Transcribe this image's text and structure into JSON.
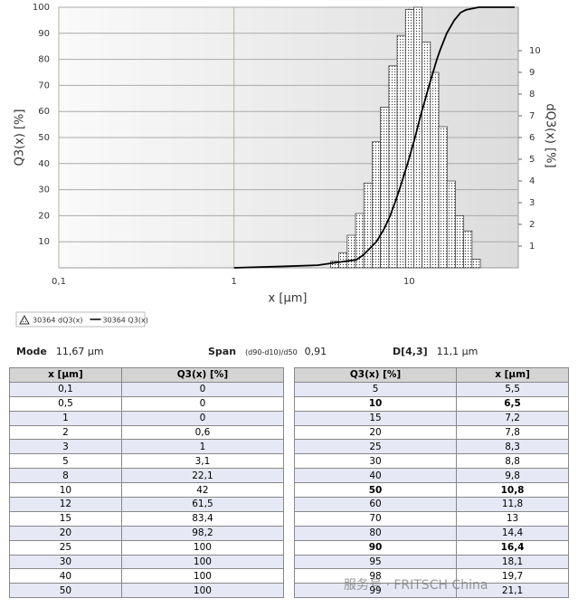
{
  "chart_data": {
    "type": "histogram",
    "xlabel": "x [µm]",
    "ylabel": "Q3(x) [%]",
    "y2label": "dQ3(x) [%]",
    "xscale": "log",
    "grid": true,
    "xlim": [
      0.1,
      42
    ],
    "xticks": [
      {
        "value": 0.1,
        "label": "0,1"
      },
      1,
      10
    ],
    "ylim": [
      0,
      100
    ],
    "yticks": [
      10,
      20,
      30,
      40,
      50,
      60,
      70,
      80,
      90,
      100
    ],
    "y2lim": [
      0,
      12
    ],
    "y2ticks": [
      1,
      2,
      3,
      4,
      5,
      6,
      7,
      8,
      9,
      10
    ],
    "series": [
      {
        "name": "30364 dQ3(x)",
        "type": "histogram",
        "axis": "y2",
        "color": "#333333",
        "bins": [
          3.56,
          3.97,
          4.43,
          4.94,
          5.51,
          6.15,
          6.86,
          7.66,
          8.54,
          9.53,
          10.63,
          11.86,
          13.23,
          14.76,
          16.47,
          18.37,
          20.5,
          22.87,
          25.51
        ],
        "values": [
          0.3,
          0.7,
          1.5,
          2.5,
          3.9,
          5.8,
          7.4,
          9.3,
          10.7,
          11.9,
          12,
          10.4,
          9,
          6.5,
          4,
          2.4,
          1.7,
          0.4
        ]
      },
      {
        "name": "30364 Q3(x)",
        "type": "line",
        "color": "#000000",
        "x": [
          1,
          2,
          3,
          5,
          5.5,
          6.5,
          7.2,
          7.8,
          8,
          8.3,
          8.8,
          9.8,
          10,
          10.8,
          11.8,
          12,
          13,
          14.4,
          15,
          16.4,
          18.1,
          19.7,
          20,
          21.1,
          25,
          40
        ],
        "values": [
          0,
          0.6,
          1,
          3.1,
          5,
          10,
          15,
          20,
          22.1,
          25,
          30,
          40,
          42,
          50,
          60,
          61.5,
          70,
          80,
          83.4,
          90,
          95,
          98,
          98.2,
          99,
          100,
          100
        ]
      }
    ]
  },
  "stats": {
    "mode_label": "Mode",
    "mode_value": "11,67 µm",
    "span_label": "Span",
    "span_note": "(d90-d10)/d50",
    "span_value": "0,91",
    "d43_label": "D[4,3]",
    "d43_value": "11,1 µm"
  },
  "tables": [
    {
      "header": [
        "x [µm]",
        "Q3(x) [%]"
      ],
      "rows": [
        [
          "0,1",
          "0"
        ],
        [
          "0,5",
          "0"
        ],
        [
          "1",
          "0"
        ],
        [
          "2",
          "0,6"
        ],
        [
          "3",
          "1"
        ],
        [
          "5",
          "3,1"
        ],
        [
          "8",
          "22,1"
        ],
        [
          "10",
          "42"
        ],
        [
          "12",
          "61,5"
        ],
        [
          "15",
          "83,4"
        ],
        [
          "20",
          "98,2"
        ],
        [
          "25",
          "100"
        ],
        [
          "30",
          "100"
        ],
        [
          "40",
          "100"
        ],
        [
          "50",
          "100"
        ]
      ]
    },
    {
      "header": [
        "Q3(x) [%]",
        "x [µm]"
      ],
      "rows": [
        [
          "5",
          "5,5"
        ],
        [
          "10",
          "6,5"
        ],
        [
          "15",
          "7,2"
        ],
        [
          "20",
          "7,8"
        ],
        [
          "25",
          "8,3"
        ],
        [
          "30",
          "8,8"
        ],
        [
          "40",
          "9,8"
        ],
        [
          "50",
          "10,8"
        ],
        [
          "60",
          "11,8"
        ],
        [
          "70",
          "13"
        ],
        [
          "80",
          "14,4"
        ],
        [
          "90",
          "16,4"
        ],
        [
          "95",
          "18,1"
        ],
        [
          "98",
          "19,7"
        ],
        [
          "99",
          "21,1"
        ]
      ]
    }
  ],
  "watermark": "服务号 · FRITSCH China"
}
